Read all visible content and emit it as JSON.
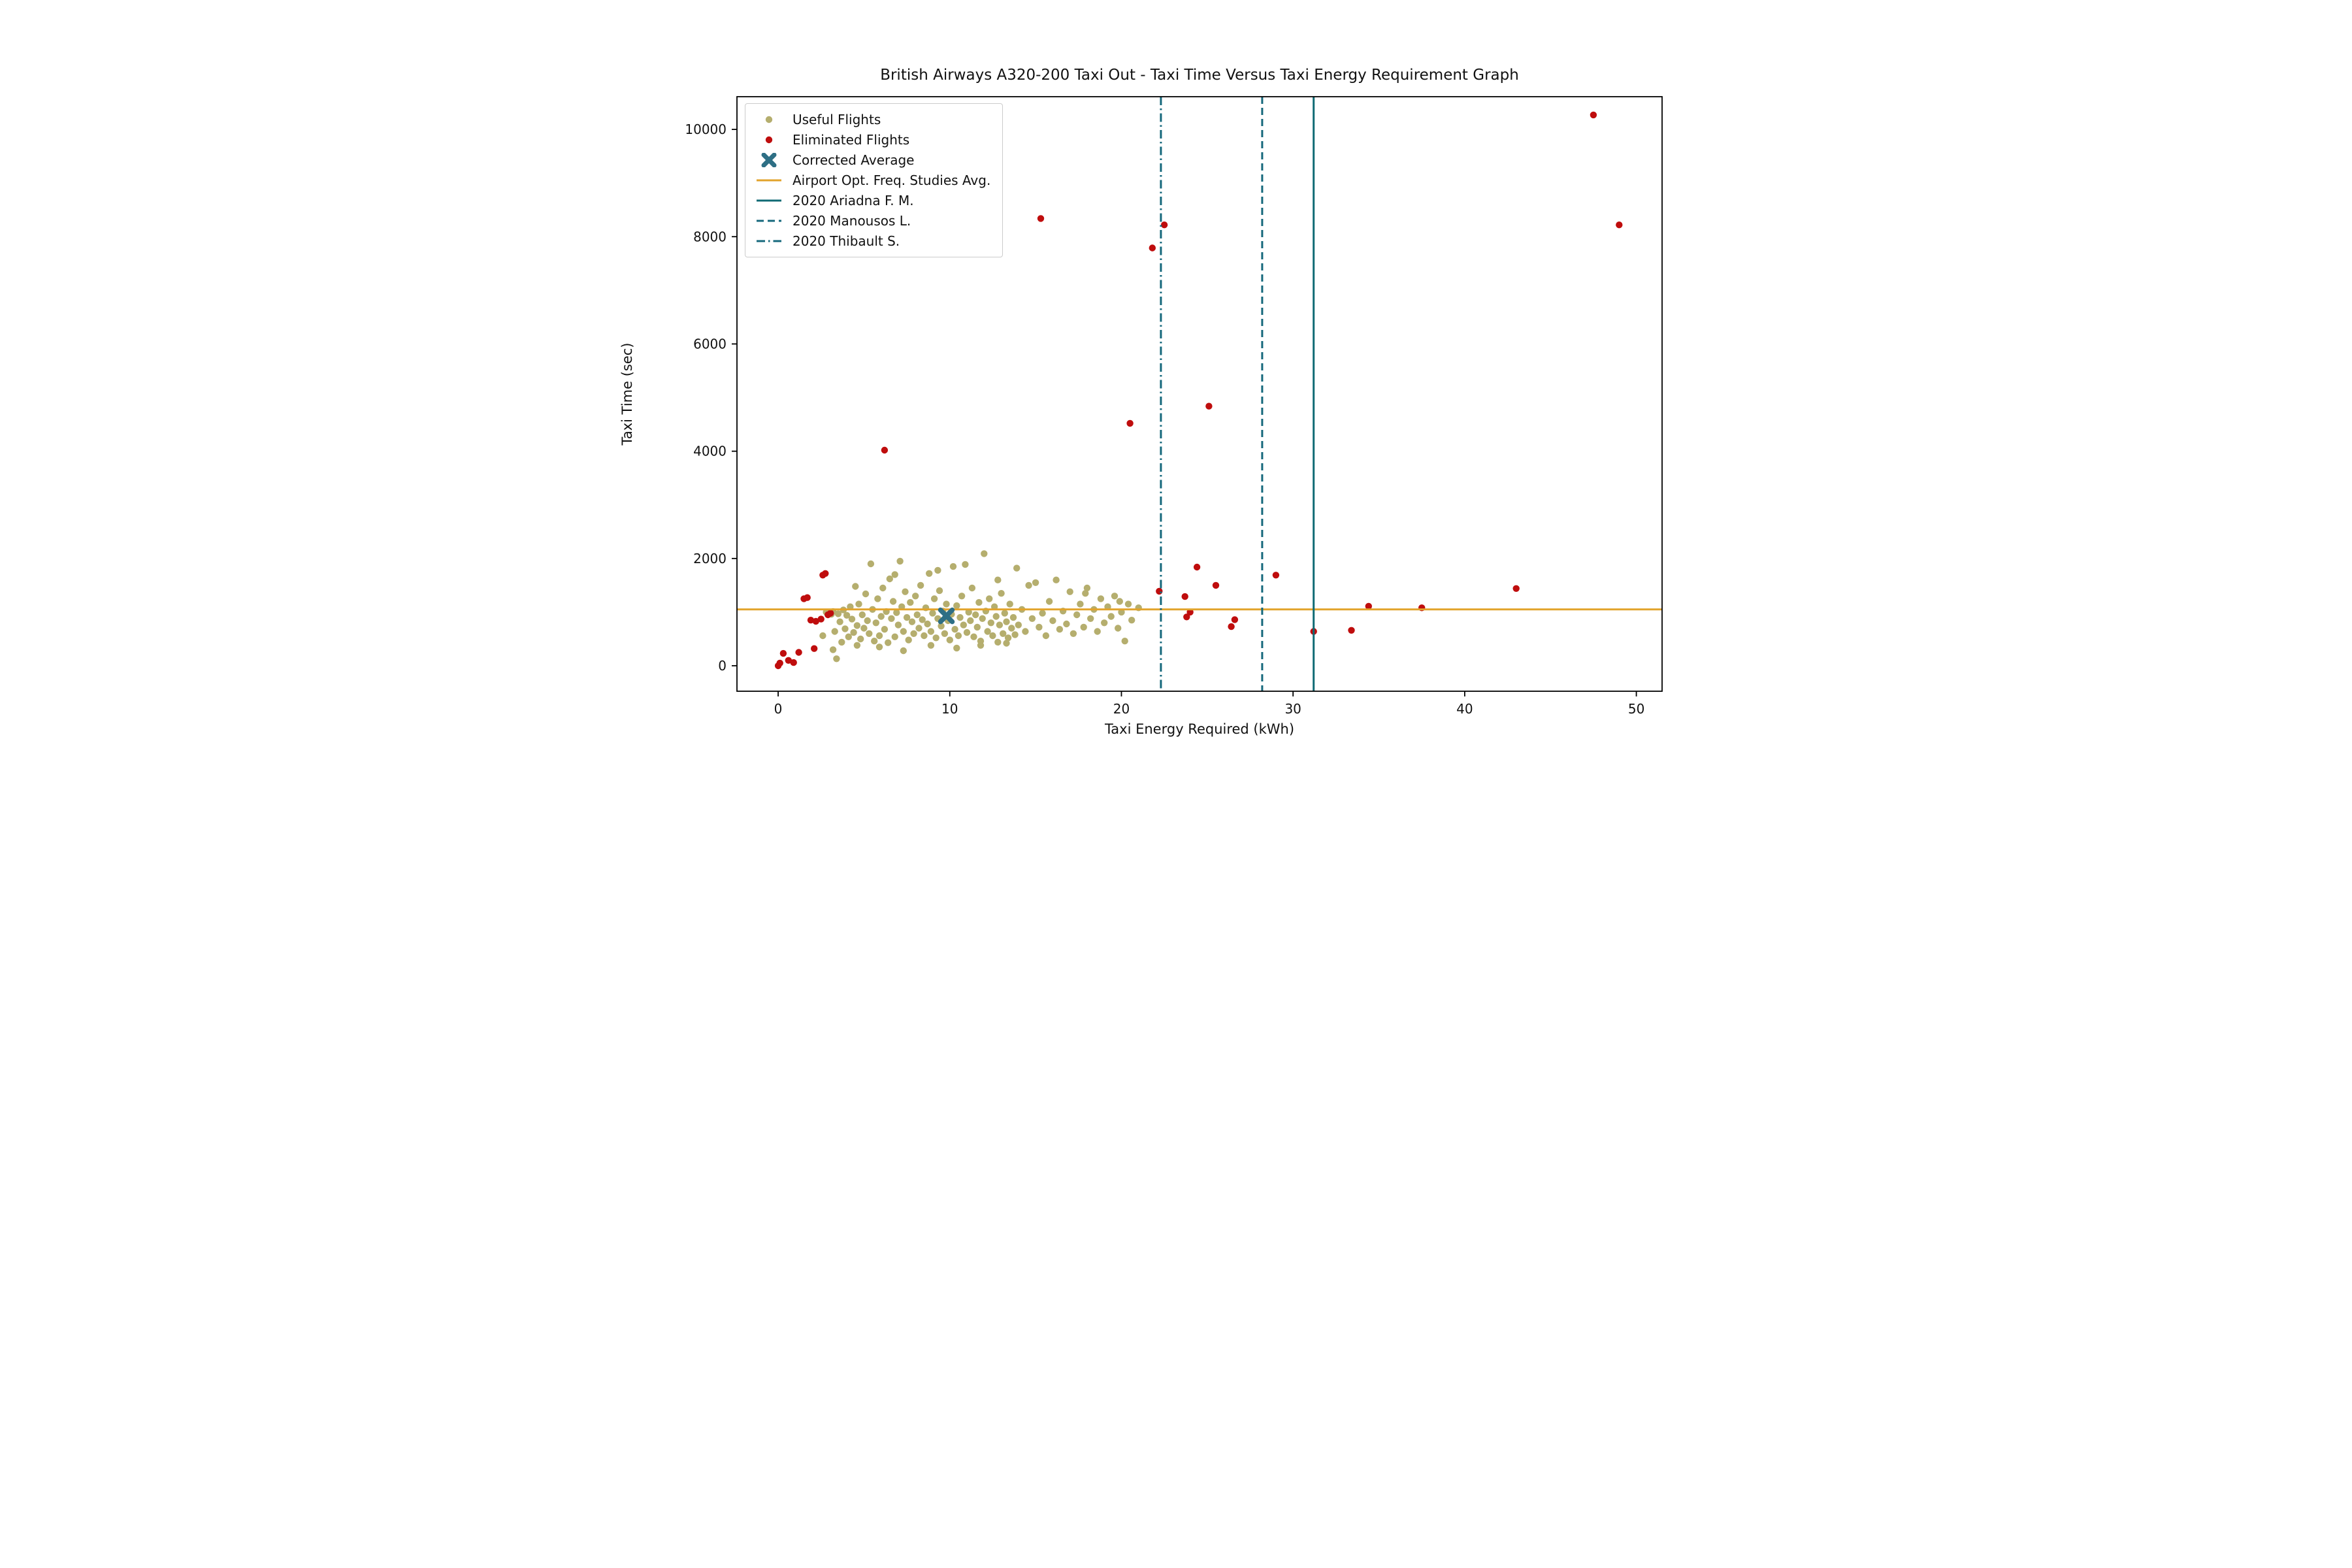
{
  "title": "British Airways A320-200 Taxi Out - Taxi Time Versus Taxi Energy Requirement Graph",
  "chart_data": {
    "type": "scatter",
    "title": "British Airways A320-200 Taxi Out - Taxi Time Versus Taxi Energy Requirement Graph",
    "xlabel": "Taxi Energy Required (kWh)",
    "ylabel": "Taxi Time (sec)",
    "xlim": [
      -2.4,
      51.5
    ],
    "ylim": [
      -475,
      10610
    ],
    "xticks": [
      0,
      10,
      20,
      30,
      40,
      50
    ],
    "yticks": [
      0,
      2000,
      4000,
      6000,
      8000,
      10000
    ],
    "grid": false,
    "legend_position": "upper left",
    "series": [
      {
        "name": "Useful Flights",
        "type": "scatter",
        "marker": "circle",
        "color": "#b5ae6e",
        "points": [
          [
            2.6,
            560
          ],
          [
            2.8,
            1000
          ],
          [
            3.0,
            990
          ],
          [
            3.1,
            960
          ],
          [
            3.2,
            1010
          ],
          [
            3.2,
            300
          ],
          [
            3.3,
            640
          ],
          [
            3.4,
            130
          ],
          [
            3.5,
            970
          ],
          [
            3.6,
            820
          ],
          [
            3.7,
            440
          ],
          [
            3.8,
            1040
          ],
          [
            3.9,
            690
          ],
          [
            4.0,
            940
          ],
          [
            4.1,
            540
          ],
          [
            4.2,
            1100
          ],
          [
            4.3,
            870
          ],
          [
            4.4,
            620
          ],
          [
            4.5,
            1480
          ],
          [
            4.6,
            750
          ],
          [
            4.6,
            380
          ],
          [
            4.7,
            1150
          ],
          [
            4.8,
            500
          ],
          [
            4.9,
            950
          ],
          [
            5.0,
            700
          ],
          [
            5.1,
            1340
          ],
          [
            5.2,
            840
          ],
          [
            5.3,
            600
          ],
          [
            5.4,
            1900
          ],
          [
            5.5,
            1050
          ],
          [
            5.6,
            460
          ],
          [
            5.7,
            800
          ],
          [
            5.8,
            1250
          ],
          [
            5.9,
            560
          ],
          [
            5.9,
            350
          ],
          [
            6.0,
            920
          ],
          [
            6.1,
            1450
          ],
          [
            6.2,
            680
          ],
          [
            6.3,
            1010
          ],
          [
            6.4,
            430
          ],
          [
            6.5,
            1620
          ],
          [
            6.6,
            880
          ],
          [
            6.7,
            1200
          ],
          [
            6.8,
            540
          ],
          [
            6.8,
            1700
          ],
          [
            6.9,
            990
          ],
          [
            7.0,
            760
          ],
          [
            7.1,
            1950
          ],
          [
            7.2,
            1100
          ],
          [
            7.3,
            640
          ],
          [
            7.3,
            280
          ],
          [
            7.4,
            1380
          ],
          [
            7.5,
            900
          ],
          [
            7.6,
            480
          ],
          [
            7.7,
            1180
          ],
          [
            7.8,
            820
          ],
          [
            7.9,
            600
          ],
          [
            8.0,
            1300
          ],
          [
            8.1,
            950
          ],
          [
            8.2,
            700
          ],
          [
            8.3,
            1500
          ],
          [
            8.4,
            860
          ],
          [
            8.5,
            560
          ],
          [
            8.6,
            1080
          ],
          [
            8.7,
            780
          ],
          [
            8.8,
            1720
          ],
          [
            8.9,
            640
          ],
          [
            8.9,
            380
          ],
          [
            9.0,
            980
          ],
          [
            9.1,
            1250
          ],
          [
            9.2,
            520
          ],
          [
            9.3,
            880
          ],
          [
            9.3,
            1780
          ],
          [
            9.4,
            1400
          ],
          [
            9.5,
            740
          ],
          [
            9.6,
            1020
          ],
          [
            9.7,
            600
          ],
          [
            9.8,
            1150
          ],
          [
            9.9,
            840
          ],
          [
            10.0,
            480
          ],
          [
            10.1,
            960
          ],
          [
            10.2,
            1850
          ],
          [
            10.3,
            680
          ],
          [
            10.4,
            1120
          ],
          [
            10.4,
            330
          ],
          [
            10.5,
            560
          ],
          [
            10.6,
            900
          ],
          [
            10.7,
            1300
          ],
          [
            10.8,
            760
          ],
          [
            10.9,
            1890
          ],
          [
            11.0,
            620
          ],
          [
            11.1,
            1000
          ],
          [
            11.2,
            840
          ],
          [
            11.3,
            1450
          ],
          [
            11.4,
            540
          ],
          [
            11.5,
            950
          ],
          [
            11.6,
            720
          ],
          [
            11.7,
            1180
          ],
          [
            11.8,
            460
          ],
          [
            11.8,
            380
          ],
          [
            11.9,
            880
          ],
          [
            12.0,
            2090
          ],
          [
            12.1,
            1020
          ],
          [
            12.2,
            640
          ],
          [
            12.3,
            1250
          ],
          [
            12.4,
            800
          ],
          [
            12.5,
            560
          ],
          [
            12.6,
            1100
          ],
          [
            12.7,
            920
          ],
          [
            12.8,
            440
          ],
          [
            12.8,
            1600
          ],
          [
            12.9,
            760
          ],
          [
            13.0,
            1350
          ],
          [
            13.1,
            600
          ],
          [
            13.2,
            980
          ],
          [
            13.3,
            820
          ],
          [
            13.3,
            420
          ],
          [
            13.4,
            520
          ],
          [
            13.5,
            1150
          ],
          [
            13.6,
            700
          ],
          [
            13.7,
            900
          ],
          [
            13.8,
            580
          ],
          [
            13.9,
            1820
          ],
          [
            14.0,
            760
          ],
          [
            14.2,
            1050
          ],
          [
            14.4,
            640
          ],
          [
            14.6,
            1500
          ],
          [
            14.8,
            880
          ],
          [
            15.0,
            1550
          ],
          [
            15.2,
            720
          ],
          [
            15.4,
            980
          ],
          [
            15.6,
            560
          ],
          [
            15.8,
            1200
          ],
          [
            16.0,
            840
          ],
          [
            16.2,
            1600
          ],
          [
            16.4,
            680
          ],
          [
            16.6,
            1020
          ],
          [
            16.8,
            780
          ],
          [
            17.0,
            1380
          ],
          [
            17.2,
            600
          ],
          [
            17.4,
            950
          ],
          [
            17.6,
            1150
          ],
          [
            17.8,
            720
          ],
          [
            17.9,
            1350
          ],
          [
            18.0,
            1450
          ],
          [
            18.2,
            880
          ],
          [
            18.4,
            1050
          ],
          [
            18.6,
            640
          ],
          [
            18.8,
            1250
          ],
          [
            19.0,
            800
          ],
          [
            19.2,
            1100
          ],
          [
            19.4,
            920
          ],
          [
            19.6,
            1300
          ],
          [
            19.8,
            700
          ],
          [
            19.9,
            1200
          ],
          [
            20.0,
            1000
          ],
          [
            20.2,
            460
          ],
          [
            20.4,
            1150
          ],
          [
            20.6,
            850
          ],
          [
            21.0,
            1080
          ]
        ]
      },
      {
        "name": "Eliminated Flights",
        "type": "scatter",
        "marker": "circle",
        "color": "#bf0d0d",
        "points": [
          [
            0.0,
            0
          ],
          [
            0.1,
            50
          ],
          [
            0.3,
            230
          ],
          [
            0.6,
            100
          ],
          [
            0.9,
            60
          ],
          [
            1.2,
            250
          ],
          [
            1.5,
            1250
          ],
          [
            1.7,
            1270
          ],
          [
            1.9,
            850
          ],
          [
            2.1,
            320
          ],
          [
            2.2,
            830
          ],
          [
            2.5,
            870
          ],
          [
            2.6,
            1690
          ],
          [
            2.75,
            1720
          ],
          [
            2.9,
            950
          ],
          [
            3.05,
            980
          ],
          [
            6.2,
            4020
          ],
          [
            15.3,
            8340
          ],
          [
            20.5,
            4520
          ],
          [
            21.8,
            7790
          ],
          [
            22.2,
            1390
          ],
          [
            22.5,
            8220
          ],
          [
            23.7,
            1290
          ],
          [
            23.8,
            910
          ],
          [
            24.0,
            1000
          ],
          [
            24.4,
            1840
          ],
          [
            25.1,
            4840
          ],
          [
            25.5,
            1500
          ],
          [
            26.4,
            730
          ],
          [
            26.6,
            860
          ],
          [
            29.0,
            1690
          ],
          [
            31.2,
            640
          ],
          [
            33.4,
            660
          ],
          [
            34.4,
            1110
          ],
          [
            37.5,
            1080
          ],
          [
            43.0,
            1440
          ],
          [
            47.5,
            10270
          ],
          [
            49.0,
            8220
          ]
        ]
      },
      {
        "name": "Corrected Average",
        "type": "scatter",
        "marker": "X",
        "color": "#2e6f85",
        "points": [
          [
            9.8,
            930
          ]
        ]
      },
      {
        "name": "Airport Opt. Freq. Studies Avg.",
        "type": "hline",
        "style": "solid",
        "color": "#e2a32b",
        "y": 1050
      },
      {
        "name": "2020 Ariadna F. M.",
        "type": "vline",
        "style": "solid",
        "color": "#0f6a74",
        "x": 31.2
      },
      {
        "name": "2020 Manousos L.",
        "type": "vline",
        "style": "dashed",
        "color": "#15687c",
        "x": 28.2
      },
      {
        "name": "2020 Thibault S.",
        "type": "vline",
        "style": "dashdot",
        "color": "#15687c",
        "x": 22.3
      }
    ]
  }
}
